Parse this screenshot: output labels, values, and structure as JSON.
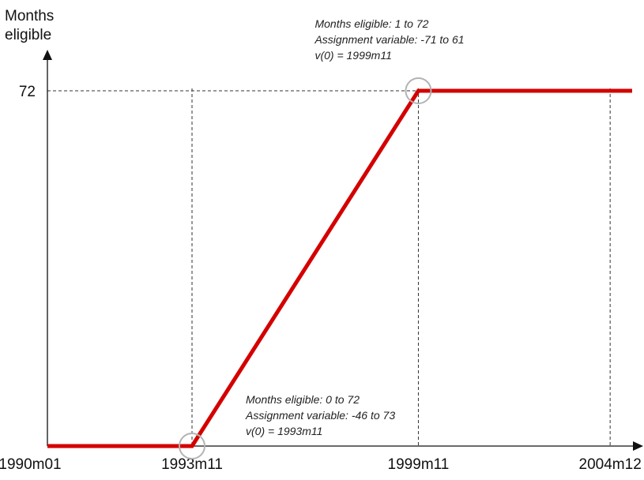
{
  "chart_data": {
    "type": "line",
    "ylabel": [
      "Months",
      "eligible"
    ],
    "xlabel": "",
    "x_ticks": [
      "1990m01",
      "1993m11",
      "1999m11",
      "2004m12"
    ],
    "y_ticks": [
      "72"
    ],
    "x_range": [
      "1990m01",
      "2005m07"
    ],
    "ylim": [
      0,
      80
    ],
    "grid": false,
    "reference_lines": {
      "vertical": [
        "1993m11",
        "1999m11",
        "2004m12"
      ],
      "horizontal": [
        72
      ]
    },
    "series": [
      {
        "color": "#d40000",
        "points": [
          {
            "x": "1990m01",
            "y": 0
          },
          {
            "x": "1993m11",
            "y": 0
          },
          {
            "x": "1999m11",
            "y": 72
          },
          {
            "x": "2005m07",
            "y": 72
          }
        ]
      }
    ],
    "annotations": [
      {
        "anchor": {
          "x": "1999m11",
          "y": 72
        },
        "lines": [
          "Months eligible: 1 to 72",
          "Assignment variable: -71 to 61",
          "v(0) = 1999m11"
        ]
      },
      {
        "anchor": {
          "x": "1993m11",
          "y": 0
        },
        "lines": [
          "Months eligible: 0 to 72",
          "Assignment variable: -46 to 73",
          "v(0) = 1993m11"
        ]
      }
    ]
  },
  "colors": {
    "line": "#d40000",
    "circle": "#b3b3b3",
    "axis": "#111111"
  }
}
